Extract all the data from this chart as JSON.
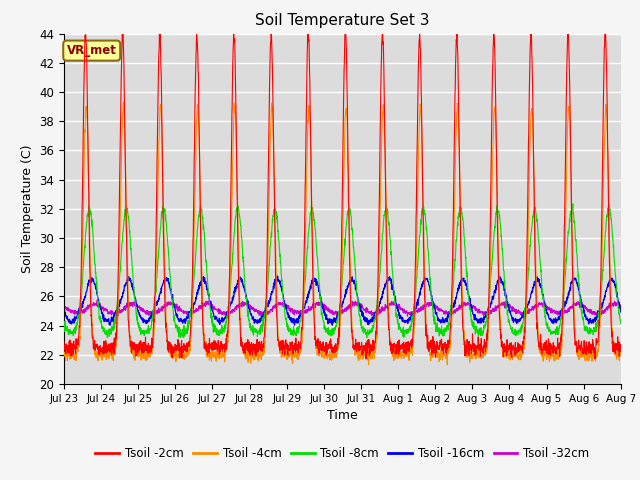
{
  "title": "Soil Temperature Set 3",
  "xlabel": "Time",
  "ylabel": "Soil Temperature (C)",
  "ylim": [
    20,
    44
  ],
  "yticks": [
    20,
    22,
    24,
    26,
    28,
    30,
    32,
    34,
    36,
    38,
    40,
    42,
    44
  ],
  "colors": {
    "Tsoil -2cm": "#ff0000",
    "Tsoil -4cm": "#ff8c00",
    "Tsoil -8cm": "#00dd00",
    "Tsoil -16cm": "#0000ee",
    "Tsoil -32cm": "#cc00cc"
  },
  "bg_plot": "#dcdcdc",
  "bg_fig": "#f5f5f5",
  "grid_color": "#ffffff",
  "annotation_text": "VR_met",
  "annotation_bg": "#ffff99",
  "annotation_border": "#8B6914",
  "x_tick_labels": [
    "Jul 23",
    "Jul 24",
    "Jul 25",
    "Jul 26",
    "Jul 27",
    "Jul 28",
    "Jul 29",
    "Jul 30",
    "Jul 31",
    "Aug 1",
    "Aug 2",
    "Aug 3",
    "Aug 4",
    "Aug 5",
    "Aug 6",
    "Aug 7"
  ],
  "n_days": 15,
  "pts_per_day": 144
}
